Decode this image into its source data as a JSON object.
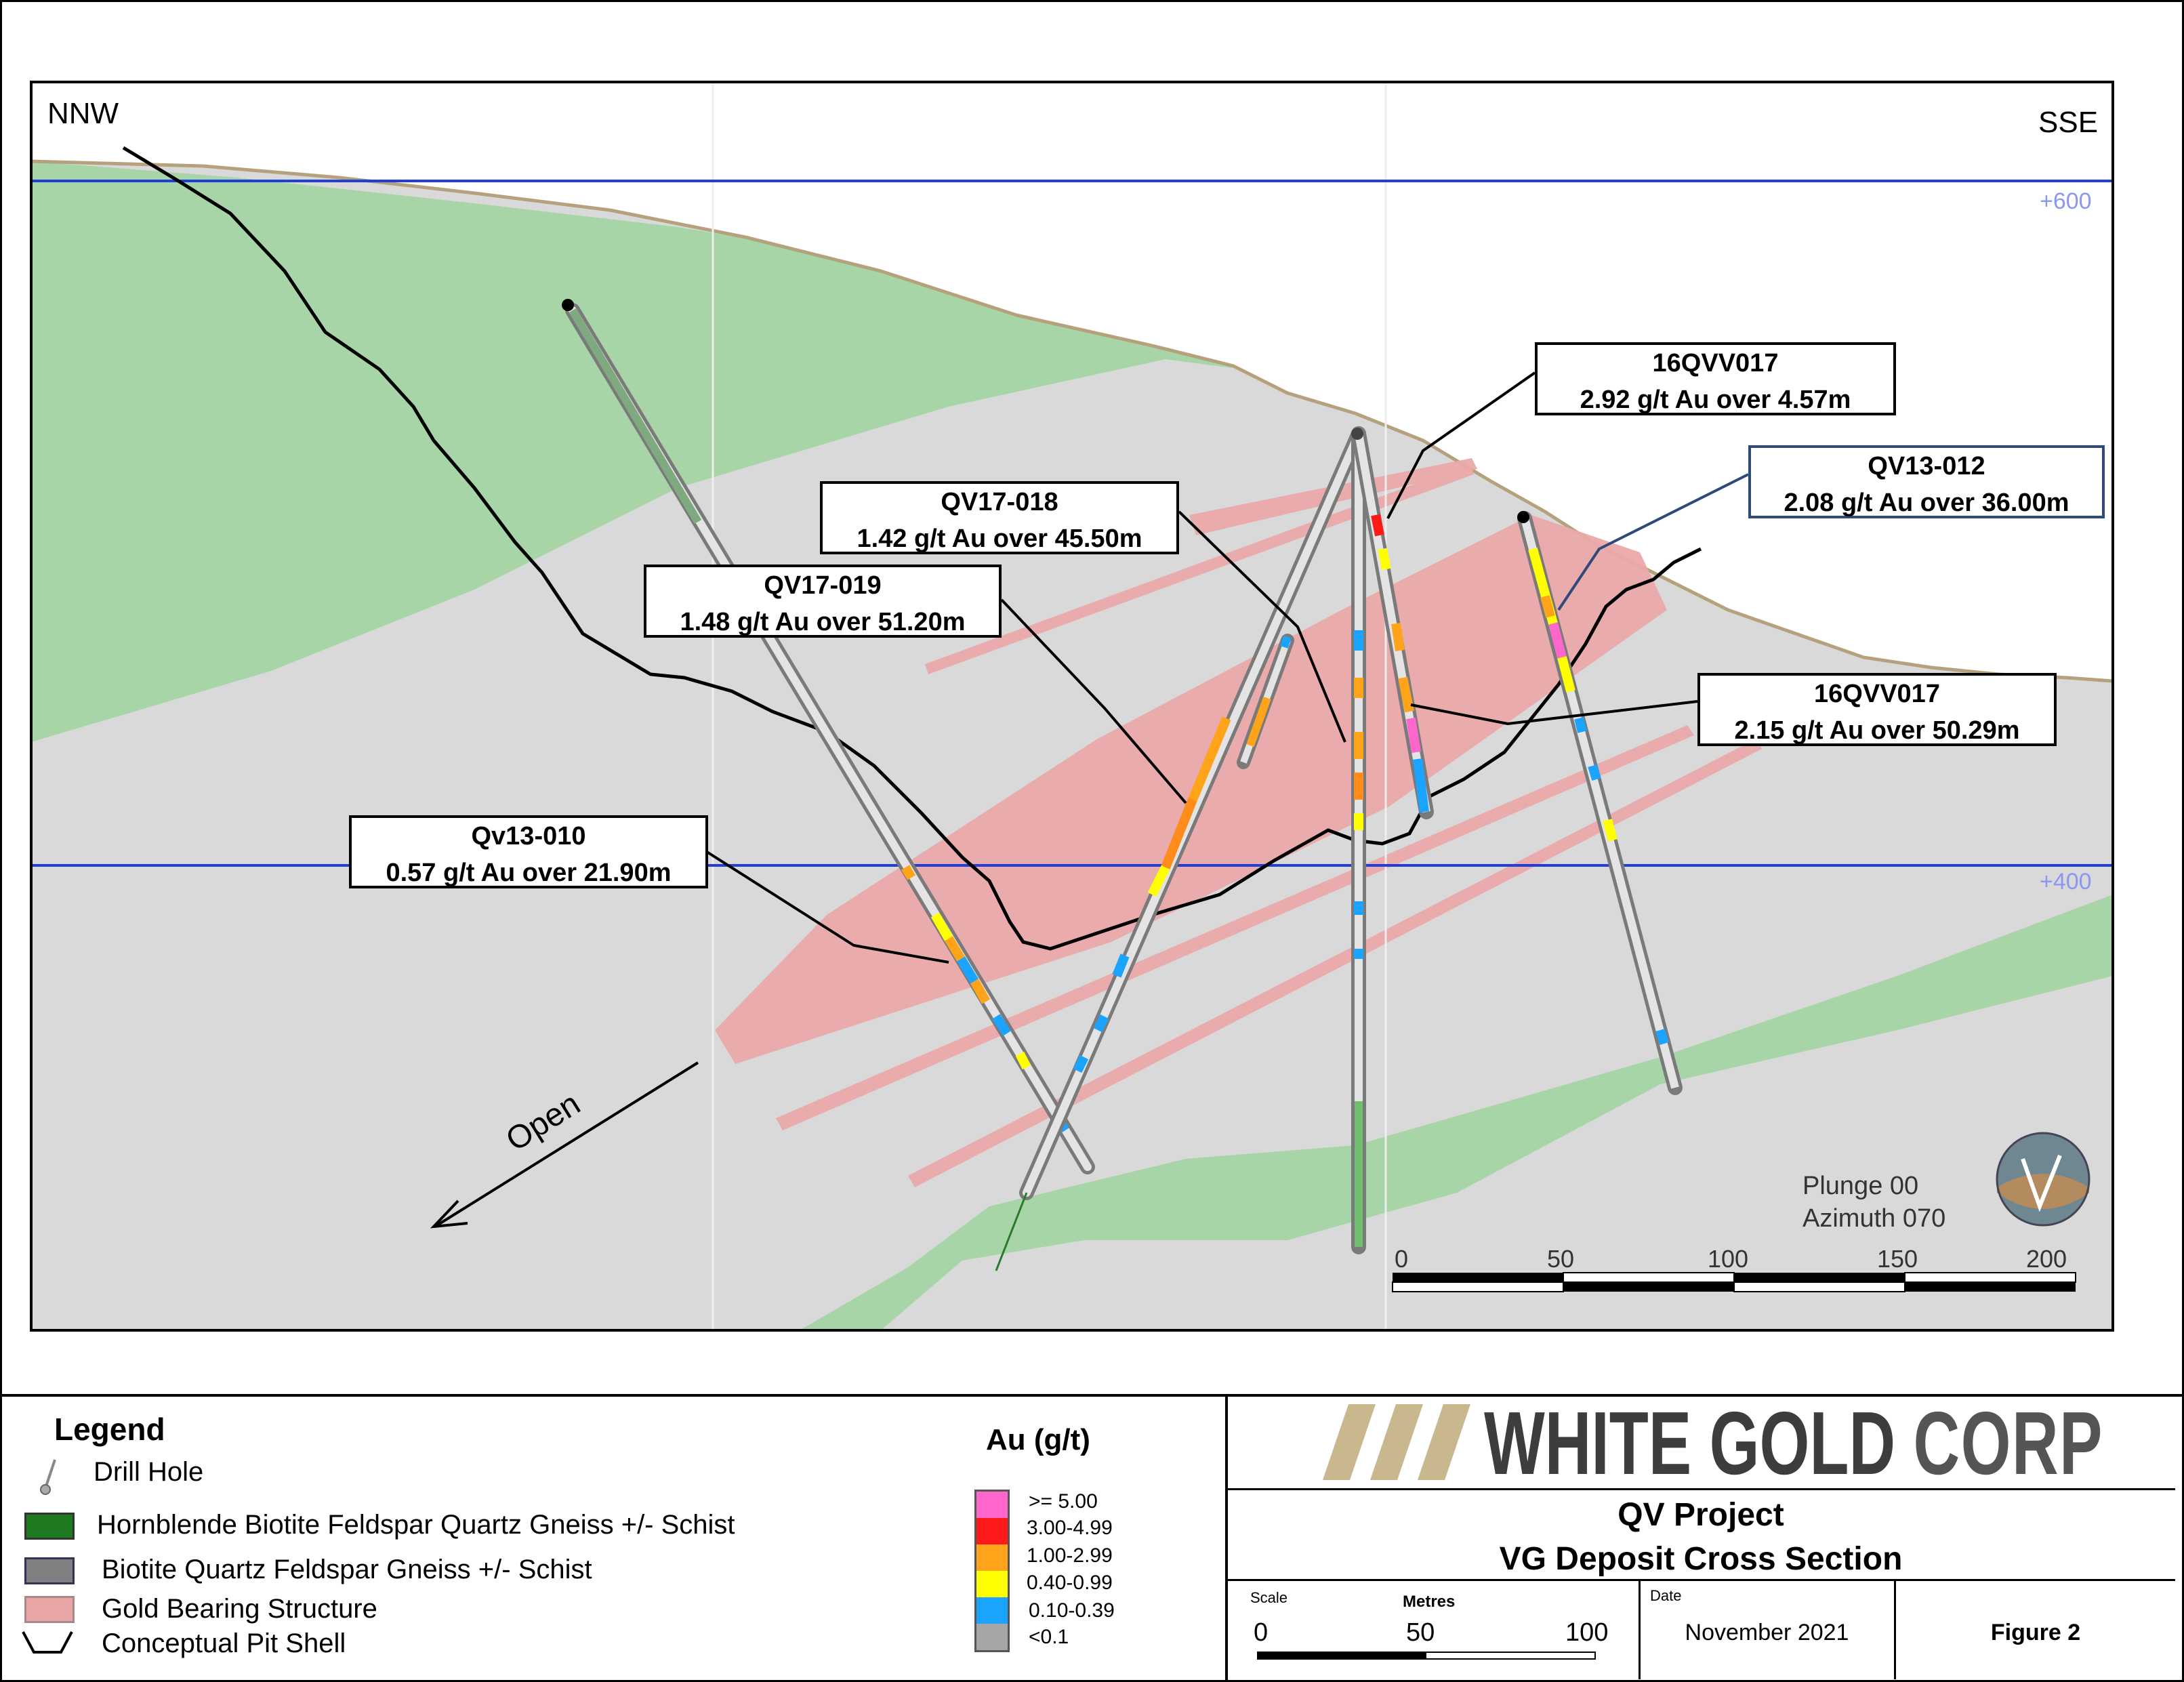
{
  "section": {
    "left_direction": "NNW",
    "right_direction": "SSE",
    "elevation_labels": [
      "+600",
      "+400"
    ],
    "open_label": "Open",
    "plunge": "Plunge 00",
    "azimuth": "Azimuth 070",
    "scale_ticks": [
      "0",
      "50",
      "100",
      "150",
      "200"
    ]
  },
  "callouts": [
    {
      "id": "16QVV017",
      "line1": "16QVV017",
      "line2": "2.92 g/t Au over 4.57m"
    },
    {
      "id": "QV13-012",
      "line1": "QV13-012",
      "line2": "2.08 g/t Au over 36.00m"
    },
    {
      "id": "QV17-018",
      "line1": "QV17-018",
      "line2": "1.42 g/t Au over 45.50m"
    },
    {
      "id": "QV17-019",
      "line1": "QV17-019",
      "line2": "1.48 g/t Au over 51.20m"
    },
    {
      "id": "16QVV017-b",
      "line1": "16QVV017",
      "line2": "2.15 g/t Au over 50.29m"
    },
    {
      "id": "Qv13-010",
      "line1": "Qv13-010",
      "line2": "0.57 g/t Au over 21.90m"
    }
  ],
  "legend": {
    "title": "Legend",
    "items": [
      {
        "label": "Drill Hole",
        "symbol": "drill-hole-icon"
      },
      {
        "label": "Hornblende Biotite Feldspar Quartz Gneiss +/- Schist",
        "color": "#1e7a1e"
      },
      {
        "label": "Biotite Quartz Feldspar Gneiss +/- Schist",
        "color": "#808080"
      },
      {
        "label": "Gold Bearing Structure",
        "color": "#e8a6a6"
      },
      {
        "label": "Conceptual Pit Shell",
        "symbol": "pit-shell-icon"
      }
    ]
  },
  "au_scale": {
    "title": "Au (g/t)",
    "classes": [
      {
        "label": ">= 5.00",
        "color": "#ff66cc"
      },
      {
        "label": "3.00-4.99",
        "color": "#ff1a1a"
      },
      {
        "label": "1.00-2.99",
        "color": "#ffa31a"
      },
      {
        "label": "0.40-0.99",
        "color": "#ffff00"
      },
      {
        "label": "0.10-0.39",
        "color": "#1aa3ff"
      },
      {
        "label": "<0.1",
        "color": "#a6a6a6"
      }
    ]
  },
  "title_block": {
    "logo_text_bold": "WHITE GOLD",
    "logo_text_light": "CORP",
    "project": "QV Project",
    "subtitle": "VG Deposit Cross Section",
    "scale_label": "Scale",
    "metres_label": "Metres",
    "scale_ticks": [
      "0",
      "50",
      "100"
    ],
    "date_label": "Date",
    "date": "November 2021",
    "figure": "Figure 2"
  },
  "colors": {
    "green_unit": "#a8d5a8",
    "grey_unit": "#d9d9d9",
    "gold_structure": "#eaa9a9",
    "elevation_line": "#1f3fd6",
    "topography": "#b5a27c",
    "logo_gold": "#c9b78e",
    "logo_dark": "#3d3d3d"
  }
}
